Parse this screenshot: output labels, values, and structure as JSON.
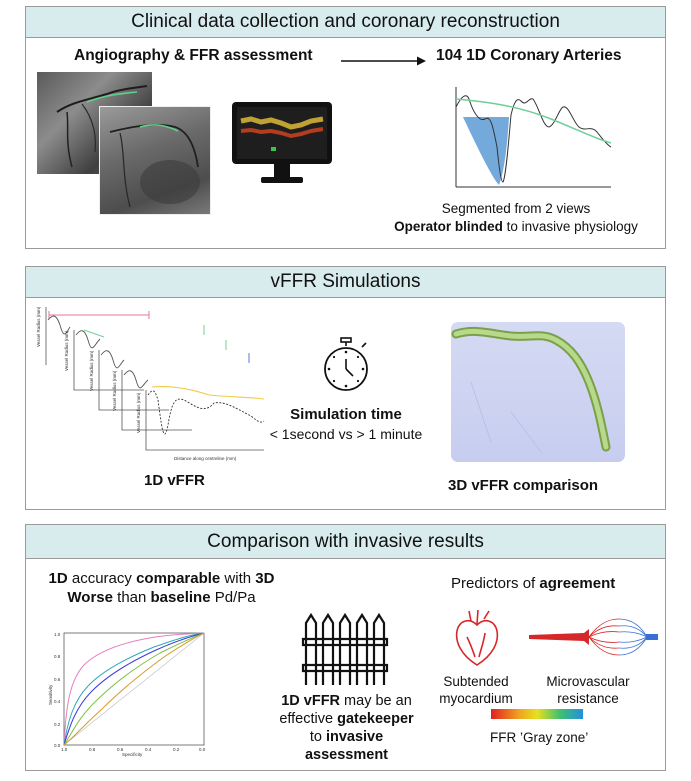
{
  "panel1": {
    "title": "Clinical data collection and coronary reconstruction",
    "left_heading": "Angiography & FFR assessment",
    "right_heading": "104 1D Coronary Arteries",
    "caption_line1": "Segmented from 2 views",
    "caption_bold": "Operator blinded",
    "caption_rest": " to invasive physiology"
  },
  "panel2": {
    "title": "vFFR Simulations",
    "axis_label_y": "Vessel Radius (mm)",
    "axis_label_x": "Distance along centreline (mm)",
    "sim_title": "Simulation time",
    "sim_subtitle": "< 1second vs > 1 minute",
    "label_1d": "1D vFFR",
    "label_3d": "3D vFFR comparison"
  },
  "panel3": {
    "title": "Comparison with invasive results",
    "acc_parts": [
      "1D",
      " accuracy ",
      "comparable",
      " with ",
      "3D"
    ],
    "worse_parts": [
      "Worse",
      " than ",
      "baseline",
      " Pd/Pa"
    ],
    "gate_parts": [
      "1D vFFR",
      " may be an effective ",
      "gatekeeper",
      " to ",
      "invasive assessment"
    ],
    "predictors_text": "Predictors of ",
    "predictors_bold": "agreement",
    "subtended": "Subtended myocardium",
    "micro": "Microvascular resistance",
    "gray_zone": "FFR ’Gray zone’",
    "roc": {
      "ylabel": "Sensitivity",
      "xlabel": "Specificity",
      "y_ticks": [
        "1.0",
        "0.8",
        "0.6",
        "0.4",
        "0.2",
        "0.0"
      ],
      "x_ticks": [
        "1.0",
        "0.8",
        "0.6",
        "0.4",
        "0.2",
        "0.0"
      ]
    }
  },
  "colors": {
    "header_bg": "#d8ecee",
    "accent_green": "#6fcf97",
    "lumen_blue": "#5b9bd5",
    "heart_red": "#d62828"
  }
}
